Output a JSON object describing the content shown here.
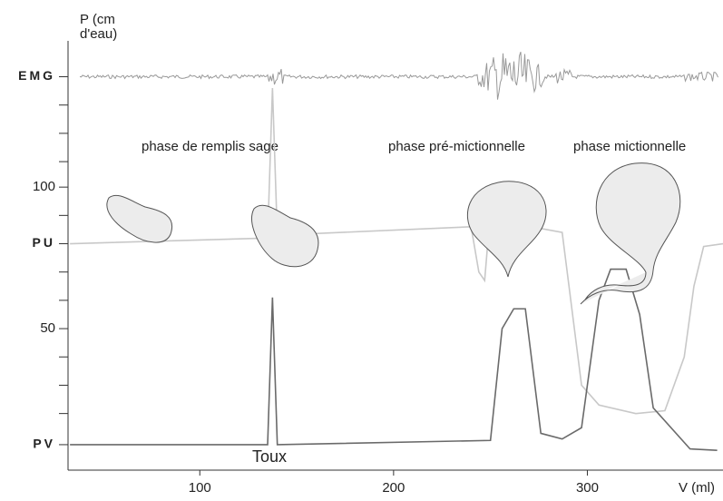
{
  "chart_data": {
    "type": "line",
    "ylabel": [
      "P (cm",
      "d'eau)"
    ],
    "xlabel": "V (ml)",
    "annotations": [
      "phase de remplis sage",
      "phase pré-mictionnelle",
      "phase mictionnelle",
      "Toux"
    ],
    "xlim": [
      32,
      370
    ],
    "ylim": [
      0,
      152
    ],
    "xticks": [
      100,
      200,
      300
    ],
    "yticks": [
      {
        "value": 139,
        "label": "EMG"
      },
      100,
      {
        "value": 80,
        "label": "PU"
      },
      50,
      {
        "value": 9,
        "label": "PV"
      }
    ],
    "yminor_ticks": [
      129,
      119,
      109,
      90,
      70,
      60,
      40,
      30,
      20
    ],
    "series": [
      {
        "color": "#c8c8c8",
        "x": [
          33,
          135,
          137.5,
          140,
          240,
          244,
          247,
          251,
          264,
          271,
          287,
          297,
          306,
          325,
          340,
          350,
          355,
          360,
          370
        ],
        "values": [
          80,
          82,
          135,
          83,
          86,
          70,
          67,
          100,
          100,
          86,
          84,
          30,
          23,
          20,
          21,
          40,
          65,
          79,
          80
        ]
      },
      {
        "color": "#6a6a6a",
        "x": [
          33,
          135,
          137.5,
          140,
          250,
          256,
          262,
          268,
          276,
          287,
          297,
          306,
          312,
          320,
          327,
          334,
          353,
          367
        ],
        "values": [
          9,
          9,
          61,
          9,
          10.5,
          50,
          57,
          57,
          13,
          11,
          15,
          60,
          71,
          71,
          55,
          22,
          7.5,
          7
        ]
      }
    ]
  }
}
